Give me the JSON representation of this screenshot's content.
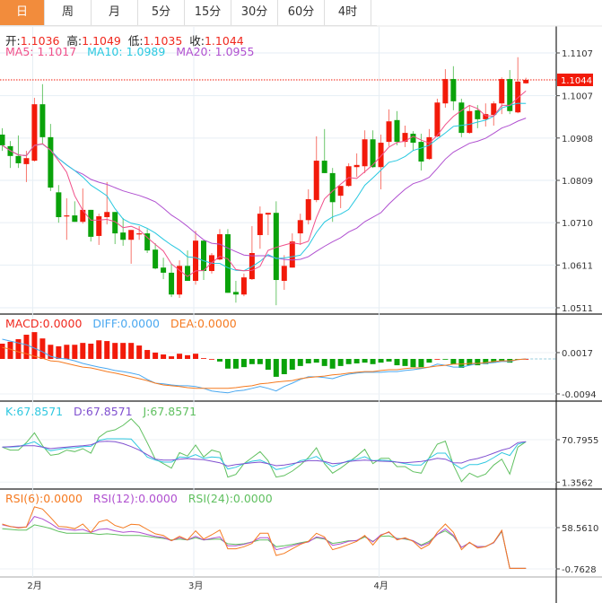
{
  "tabs": [
    {
      "label": "日",
      "active": true
    },
    {
      "label": "周"
    },
    {
      "label": "月"
    },
    {
      "label": "5分"
    },
    {
      "label": "15分"
    },
    {
      "label": "30分"
    },
    {
      "label": "60分"
    },
    {
      "label": "4时"
    }
  ],
  "ohlc_info": {
    "open_label": "开:",
    "open": "1.1036",
    "high_label": "高:",
    "high": "1.1049",
    "low_label": "低:",
    "low": "1.1035",
    "close_label": "收:",
    "close": "1.1044"
  },
  "ma_info": {
    "ma5": "MA5: 1.1017",
    "ma10": "MA10: 1.0989",
    "ma20": "MA20: 1.0955"
  },
  "macd_info": {
    "macd": "MACD:0.0000",
    "diff": "DIFF:0.0000",
    "dea": "DEA:0.0000"
  },
  "kdj_info": {
    "k": "K:67.8571",
    "d": "D:67.8571",
    "j": "J:67.8571"
  },
  "rsi_info": {
    "rsi6": "RSI(6):0.0000",
    "rsi12": "RSI(12):0.0000",
    "rsi24": "RSI(24):0.0000"
  },
  "colors": {
    "up": "#f21a0a",
    "down": "#0aa20a",
    "ma5": "#f0508a",
    "ma10": "#28c8e0",
    "ma20": "#b050d0",
    "diff": "#4aa8f0",
    "dea": "#f57a20",
    "k": "#30c8e0",
    "d": "#8050d0",
    "j": "#60c060",
    "rsi6": "#f57a20",
    "rsi12": "#b050d0",
    "rsi24": "#60c060",
    "tab_active": "#f28c3c"
  },
  "chart_data": {
    "type": "candlestick",
    "last_price": "1.1044",
    "month_labels": [
      {
        "label": "2月",
        "index": 4
      },
      {
        "label": "3月",
        "index": 24
      },
      {
        "label": "4月",
        "index": 47
      }
    ],
    "price_axis": {
      "ticks": [
        "1.1107",
        "1.1007",
        "1.0908",
        "1.0809",
        "1.0710",
        "1.0611",
        "1.0511"
      ],
      "range": [
        1.0511,
        1.1107
      ]
    },
    "candles": [
      [
        1.0916,
        1.0931,
        1.0878,
        1.0891
      ],
      [
        1.0889,
        1.0901,
        1.0838,
        1.0866
      ],
      [
        1.0866,
        1.0914,
        1.0838,
        1.0849
      ],
      [
        1.0847,
        1.0878,
        1.0805,
        1.0861
      ],
      [
        1.0855,
        1.1002,
        1.0853,
        1.0987
      ],
      [
        1.0987,
        1.1034,
        1.0895,
        1.091
      ],
      [
        1.091,
        1.0941,
        1.0784,
        1.0792
      ],
      [
        1.0781,
        1.0798,
        1.071,
        1.0723
      ],
      [
        1.0725,
        1.0767,
        1.067,
        1.0727
      ],
      [
        1.0727,
        1.076,
        1.0712,
        1.0712
      ],
      [
        1.0712,
        1.079,
        1.0708,
        1.074
      ],
      [
        1.074,
        1.074,
        1.0666,
        1.0677
      ],
      [
        1.0679,
        1.0731,
        1.0658,
        1.0725
      ],
      [
        1.0723,
        1.0805,
        1.0706,
        1.0735
      ],
      [
        1.0735,
        1.0735,
        1.066,
        1.0685
      ],
      [
        1.0687,
        1.0721,
        1.0656,
        1.067
      ],
      [
        1.067,
        1.0693,
        1.0614,
        1.0693
      ],
      [
        1.0683,
        1.0702,
        1.067,
        1.0685
      ],
      [
        1.0685,
        1.0695,
        1.0639,
        1.0645
      ],
      [
        1.0647,
        1.0662,
        1.0601,
        1.0603
      ],
      [
        1.0605,
        1.0628,
        1.0578,
        1.0593
      ],
      [
        1.0593,
        1.0614,
        1.0536,
        1.0542
      ],
      [
        1.0542,
        1.0622,
        1.0534,
        1.0609
      ],
      [
        1.0609,
        1.0645,
        1.0574,
        1.0574
      ],
      [
        1.0574,
        1.0691,
        1.0565,
        1.0668
      ],
      [
        1.0668,
        1.0668,
        1.0576,
        1.0597
      ],
      [
        1.0597,
        1.0639,
        1.0591,
        1.0634
      ],
      [
        1.0624,
        1.0695,
        1.0622,
        1.0683
      ],
      [
        1.0683,
        1.0695,
        1.0546,
        1.0546
      ],
      [
        1.0548,
        1.0574,
        1.0523,
        1.0542
      ],
      [
        1.0542,
        1.0591,
        1.0538,
        1.0582
      ],
      [
        1.0578,
        1.0702,
        1.0576,
        1.0639
      ],
      [
        1.0681,
        1.0748,
        1.0649,
        1.0731
      ],
      [
        1.0729,
        1.0733,
        1.0681,
        1.0733
      ],
      [
        1.0733,
        1.076,
        1.0517,
        1.0576
      ],
      [
        1.0574,
        1.0634,
        1.0553,
        1.0609
      ],
      [
        1.0605,
        1.0685,
        1.0605,
        1.0666
      ],
      [
        1.0685,
        1.0731,
        1.0658,
        1.0716
      ],
      [
        1.0716,
        1.0788,
        1.0706,
        1.0765
      ],
      [
        1.0763,
        1.0912,
        1.0758,
        1.0855
      ],
      [
        1.0855,
        1.0929,
        1.0826,
        1.0826
      ],
      [
        1.0826,
        1.0838,
        1.0712,
        1.0758
      ],
      [
        1.0773,
        1.0796,
        1.0744,
        1.0796
      ],
      [
        1.0796,
        1.0849,
        1.0794,
        1.0842
      ],
      [
        1.084,
        1.0872,
        1.0817,
        1.0845
      ],
      [
        1.0842,
        1.0926,
        1.0826,
        1.0905
      ],
      [
        1.0905,
        1.0926,
        1.0838,
        1.084
      ],
      [
        1.084,
        1.0916,
        1.0788,
        1.0897
      ],
      [
        1.0899,
        1.0975,
        1.0889,
        1.0947
      ],
      [
        1.095,
        1.0971,
        1.0891,
        1.0899
      ],
      [
        1.0899,
        1.0937,
        1.0887,
        1.092
      ],
      [
        1.0918,
        1.0924,
        1.0878,
        1.0897
      ],
      [
        1.0899,
        1.0918,
        1.0832,
        1.0853
      ],
      [
        1.0859,
        1.0929,
        1.0857,
        1.091
      ],
      [
        1.0912,
        1.1,
        1.091,
        1.0991
      ],
      [
        1.0989,
        1.1069,
        1.0979,
        1.1046
      ],
      [
        1.1046,
        1.1076,
        1.0973,
        1.0994
      ],
      [
        1.0991,
        1.1,
        1.091,
        1.092
      ],
      [
        1.092,
        1.0985,
        1.0918,
        1.0971
      ],
      [
        1.0973,
        1.0985,
        1.0931,
        1.0952
      ],
      [
        1.0952,
        1.0989,
        1.0935,
        1.0964
      ],
      [
        1.0962,
        1.0994,
        1.0937,
        1.0989
      ],
      [
        1.0989,
        1.105,
        1.0964,
        1.1046
      ],
      [
        1.1046,
        1.1067,
        1.0964,
        1.0971
      ],
      [
        1.0968,
        1.1097,
        1.0966,
        1.104
      ],
      [
        1.1036,
        1.1049,
        1.1035,
        1.1044
      ]
    ],
    "macd": {
      "unit": "x0.0001",
      "axis_ticks": [
        "0.0017",
        "-0.0094"
      ],
      "axis_tick_values": [
        17,
        -94
      ],
      "hist": [
        41,
        46,
        53,
        65,
        72,
        55,
        38,
        34,
        38,
        38,
        43,
        41,
        50,
        48,
        43,
        43,
        43,
        36,
        24,
        17,
        12,
        7,
        14,
        10,
        14,
        2,
        0,
        -7,
        -26,
        -26,
        -22,
        -14,
        -14,
        -29,
        -48,
        -41,
        -29,
        -19,
        -12,
        -10,
        -19,
        -26,
        -19,
        -14,
        -12,
        -10,
        -14,
        -10,
        -7,
        -17,
        -19,
        -22,
        -22,
        -10,
        0,
        -2,
        -14,
        -24,
        -17,
        -17,
        -14,
        -10,
        -5,
        -10,
        -2,
        0
      ],
      "diff": [
        53,
        48,
        43,
        38,
        29,
        19,
        7,
        2,
        0,
        -5,
        -12,
        -17,
        -22,
        -26,
        -31,
        -34,
        -38,
        -43,
        -55,
        -65,
        -67,
        -70,
        -72,
        -72,
        -74,
        -79,
        -86,
        -89,
        -91,
        -86,
        -84,
        -79,
        -74,
        -79,
        -86,
        -74,
        -65,
        -55,
        -48,
        -48,
        -50,
        -53,
        -46,
        -41,
        -38,
        -36,
        -36,
        -36,
        -34,
        -34,
        -31,
        -29,
        -26,
        -22,
        -14,
        -17,
        -22,
        -22,
        -17,
        -12,
        -12,
        -10,
        -7,
        -7,
        -2,
        0
      ],
      "dea": [
        31,
        26,
        19,
        14,
        7,
        2,
        -5,
        -7,
        -12,
        -17,
        -22,
        -24,
        -29,
        -34,
        -38,
        -43,
        -48,
        -53,
        -58,
        -65,
        -70,
        -72,
        -74,
        -77,
        -79,
        -79,
        -79,
        -79,
        -79,
        -77,
        -74,
        -72,
        -67,
        -65,
        -62,
        -60,
        -58,
        -53,
        -50,
        -48,
        -46,
        -43,
        -41,
        -38,
        -36,
        -34,
        -34,
        -31,
        -29,
        -29,
        -26,
        -24,
        -24,
        -22,
        -19,
        -17,
        -14,
        -14,
        -12,
        -12,
        -10,
        -7,
        -5,
        -5,
        -2,
        0
      ]
    },
    "kdj": {
      "axis_ticks": [
        "70.7955",
        "1.3562"
      ],
      "axis_tick_values": [
        70.7955,
        1.3562
      ],
      "k": [
        58.6,
        58.6,
        59.5,
        63.4,
        67.4,
        58.6,
        52.7,
        55.1,
        57.1,
        57.6,
        59.5,
        60.0,
        69.8,
        72.2,
        72.2,
        72.2,
        71.8,
        57.1,
        42.4,
        37.5,
        34.1,
        34.1,
        42.4,
        41.4,
        46.3,
        40.4,
        42.4,
        41.4,
        22.8,
        25.8,
        31.6,
        35.6,
        37.5,
        31.6,
        21.9,
        24.3,
        29.2,
        36.5,
        39.0,
        43.4,
        34.1,
        26.7,
        31.6,
        36.5,
        39.0,
        42.9,
        36.5,
        37.5,
        36.5,
        34.1,
        31.6,
        29.2,
        29.2,
        40.4,
        48.8,
        48.8,
        31.6,
        23.3,
        30.2,
        30.2,
        34.1,
        41.4,
        49.7,
        44.9,
        63.4,
        67.4
      ],
      "d": [
        58.6,
        59.5,
        60.5,
        61.0,
        61.0,
        58.6,
        56.1,
        57.6,
        58.6,
        60.0,
        61.0,
        62.5,
        67.4,
        68.3,
        67.4,
        64.4,
        59.5,
        53.7,
        46.3,
        39.0,
        37.5,
        37.5,
        39.0,
        40.0,
        39.0,
        38.0,
        35.6,
        33.1,
        27.7,
        30.2,
        31.6,
        33.1,
        34.1,
        31.6,
        28.2,
        29.2,
        31.6,
        34.1,
        36.5,
        36.5,
        35.1,
        31.6,
        32.6,
        35.1,
        36.5,
        37.5,
        36.5,
        35.6,
        35.1,
        34.1,
        33.1,
        34.1,
        35.1,
        37.5,
        40.4,
        39.0,
        33.1,
        32.6,
        37.5,
        40.0,
        43.9,
        48.8,
        53.7,
        57.1,
        65.9,
        67.4
      ],
      "j": [
        58.6,
        53.7,
        53.7,
        65.9,
        82.0,
        61.0,
        45.3,
        47.3,
        53.7,
        51.2,
        56.1,
        48.8,
        74.7,
        84.0,
        86.9,
        94.3,
        105.0,
        91.3,
        65.9,
        39.0,
        31.6,
        24.3,
        49.7,
        43.9,
        62.0,
        42.4,
        53.7,
        50.2,
        9.6,
        14.0,
        31.6,
        41.4,
        51.2,
        36.5,
        9.6,
        12.1,
        19.4,
        29.2,
        41.4,
        57.6,
        31.6,
        16.0,
        24.3,
        34.1,
        43.9,
        55.1,
        31.6,
        40.4,
        40.4,
        26.7,
        26.7,
        18.4,
        16.0,
        41.4,
        63.4,
        68.3,
        29.2,
        2.3,
        16.0,
        9.6,
        14.5,
        29.2,
        39.0,
        14.5,
        58.6,
        67.4
      ]
    },
    "rsi": {
      "axis_ticks": [
        "58.5610",
        "-0.7628"
      ],
      "axis_tick_values": [
        58.561,
        -0.7628
      ],
      "rsi6": [
        63.7,
        60.3,
        58.1,
        59.4,
        88.3,
        85.2,
        73.2,
        60.3,
        59.4,
        56.9,
        63.7,
        51.7,
        66.7,
        69.8,
        61.6,
        58.1,
        63.3,
        62.5,
        56.0,
        49.6,
        47.4,
        39.7,
        46.1,
        40.9,
        53.9,
        42.2,
        48.3,
        55.1,
        28.1,
        28.1,
        31.1,
        35.8,
        50.4,
        50.4,
        18.6,
        21.6,
        28.1,
        34.5,
        38.8,
        50.4,
        45.2,
        26.8,
        30.2,
        34.5,
        38.8,
        47.4,
        33.6,
        47.4,
        52.6,
        40.9,
        44.0,
        38.8,
        28.1,
        34.5,
        51.7,
        63.7,
        51.7,
        26.8,
        37.5,
        29.3,
        31.1,
        37.5,
        54.7,
        0,
        0,
        0
      ],
      "rsi12": [
        62.5,
        60.3,
        59.0,
        59.4,
        74.5,
        71.1,
        64.6,
        56.9,
        56.0,
        54.7,
        56.0,
        51.7,
        56.0,
        56.9,
        53.9,
        51.7,
        53.0,
        51.7,
        48.7,
        46.1,
        44.4,
        39.7,
        44.4,
        40.9,
        46.1,
        40.9,
        43.1,
        45.2,
        32.4,
        32.4,
        34.5,
        37.9,
        44.0,
        44.0,
        26.8,
        29.3,
        32.4,
        35.8,
        37.9,
        45.2,
        43.1,
        33.2,
        35.4,
        38.8,
        40.1,
        46.5,
        37.9,
        48.3,
        51.7,
        42.2,
        43.1,
        39.7,
        32.4,
        36.7,
        48.7,
        56.9,
        47.4,
        30.2,
        36.7,
        31.1,
        31.5,
        36.7,
        53.9,
        0,
        0,
        0
      ],
      "rsi24": [
        56.9,
        56.0,
        55.1,
        55.1,
        62.5,
        60.3,
        57.3,
        53.0,
        50.4,
        50.4,
        50.4,
        50.4,
        48.7,
        49.6,
        48.7,
        47.4,
        47.4,
        47.4,
        46.1,
        44.4,
        43.1,
        40.9,
        42.2,
        40.9,
        44.0,
        40.9,
        41.8,
        42.2,
        35.4,
        34.5,
        35.4,
        37.9,
        40.9,
        40.9,
        31.1,
        32.4,
        34.5,
        36.7,
        38.8,
        44.0,
        42.2,
        35.8,
        37.5,
        39.7,
        39.7,
        45.2,
        38.8,
        46.1,
        46.5,
        43.1,
        42.2,
        39.7,
        33.6,
        38.8,
        48.7,
        53.9,
        46.1,
        30.2,
        36.7,
        31.1,
        31.5,
        36.7,
        53.0,
        0,
        0,
        0
      ]
    }
  }
}
